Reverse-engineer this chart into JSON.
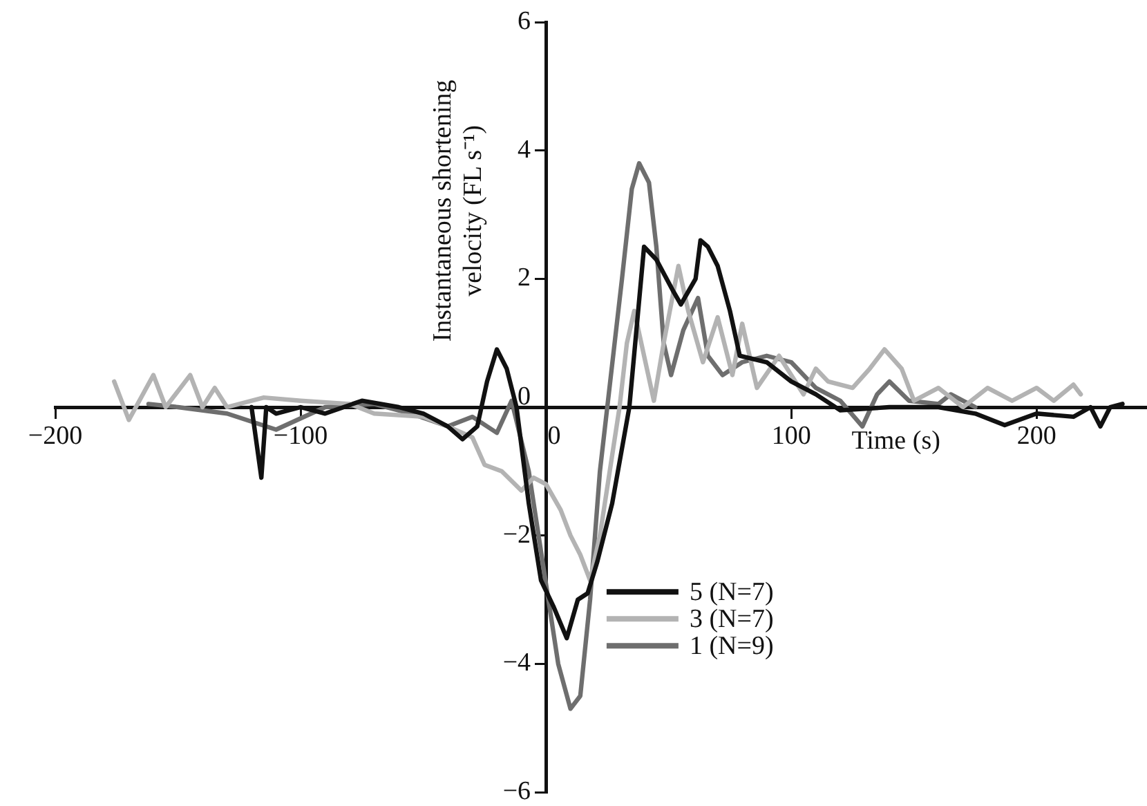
{
  "chart_data": {
    "type": "line",
    "xlabel": "Time (s)",
    "ylabel": "Instantaneous shortening velocity (FL s⁻¹)",
    "xlim": [
      -200,
      245
    ],
    "xticks": [
      -200,
      -100,
      0,
      100,
      200
    ],
    "ylim": [
      -6,
      6
    ],
    "yticks": [
      -6,
      -4,
      -2,
      0,
      2,
      4,
      6
    ],
    "grid": false,
    "legend": "bottom",
    "marker": "none",
    "line_style": "solid",
    "series": [
      {
        "name": "5 (N=7)",
        "color": "#111111",
        "x": [
          -120,
          -116,
          -114,
          -110,
          -100,
          -90,
          -75,
          -60,
          -50,
          -40,
          -34,
          -28,
          -24,
          -20,
          -16,
          -12,
          -7,
          -2,
          3,
          8.5,
          13,
          17,
          21,
          27,
          34,
          40,
          45,
          52,
          55,
          61,
          63,
          66,
          70,
          75,
          79,
          90,
          100,
          110,
          120,
          140,
          160,
          175,
          187,
          200,
          215,
          222,
          226,
          230,
          235
        ],
        "values": [
          0,
          -1.1,
          0,
          -0.1,
          0,
          -0.1,
          0.1,
          0,
          -0.1,
          -0.3,
          -0.5,
          -0.3,
          0.4,
          0.9,
          0.6,
          0,
          -1.5,
          -2.7,
          -3.1,
          -3.6,
          -3.0,
          -2.9,
          -2.4,
          -1.5,
          0,
          2.5,
          2.3,
          1.8,
          1.6,
          2.0,
          2.6,
          2.5,
          2.2,
          1.5,
          0.8,
          0.7,
          0.4,
          0.2,
          -0.05,
          0,
          0,
          -0.1,
          -0.28,
          -0.1,
          -0.15,
          0,
          -0.3,
          0,
          0.05
        ]
      },
      {
        "name": "3 (N=7)",
        "color": "#b3b3b3",
        "x": [
          -176,
          -170,
          -160,
          -155,
          -145,
          -140,
          -135,
          -130,
          -115,
          -100,
          -80,
          -70,
          -50,
          -40,
          -30,
          -25,
          -18,
          -10,
          -5,
          0,
          6,
          10,
          14,
          18,
          22,
          26,
          30,
          33,
          36,
          40,
          44,
          48,
          54,
          58,
          64,
          70,
          76,
          80,
          86,
          95,
          105,
          110,
          115,
          125,
          132,
          138,
          145,
          150,
          160,
          170,
          180,
          190,
          200,
          207,
          215,
          218
        ],
        "values": [
          0.4,
          -0.2,
          0.5,
          0,
          0.5,
          0,
          0.3,
          0,
          0.15,
          0.1,
          0.05,
          -0.1,
          -0.15,
          -0.3,
          -0.47,
          -0.9,
          -1.0,
          -1.3,
          -1.1,
          -1.2,
          -1.6,
          -2.0,
          -2.3,
          -2.7,
          -2.0,
          -1.0,
          0,
          1.0,
          1.5,
          0.8,
          0.1,
          1.0,
          2.2,
          1.5,
          0.7,
          1.4,
          0.5,
          1.3,
          0.3,
          0.8,
          0.2,
          0.6,
          0.4,
          0.3,
          0.6,
          0.9,
          0.6,
          0.1,
          0.3,
          0,
          0.3,
          0.1,
          0.3,
          0.1,
          0.35,
          0.2
        ]
      },
      {
        "name": "1 (N=9)",
        "color": "#6e6e6e",
        "x": [
          -162,
          -150,
          -130,
          -110,
          -90,
          -70,
          -55,
          -40,
          -30,
          -20,
          -14,
          -7,
          -3,
          1,
          5,
          10,
          14,
          18,
          22,
          25,
          31,
          35,
          38,
          42,
          45,
          48,
          51,
          56,
          62,
          66,
          72,
          80,
          90,
          100,
          110,
          120,
          129,
          135,
          140,
          148,
          160,
          165,
          175
        ],
        "values": [
          0.05,
          0,
          -0.1,
          -0.35,
          0,
          0.05,
          -0.1,
          -0.3,
          -0.15,
          -0.4,
          0.1,
          -1,
          -2,
          -3,
          -4,
          -4.7,
          -4.5,
          -3.0,
          -1,
          0,
          2,
          3.4,
          3.8,
          3.5,
          2.5,
          1.0,
          0.5,
          1.2,
          1.7,
          0.8,
          0.5,
          0.7,
          0.8,
          0.7,
          0.3,
          0.1,
          -0.3,
          0.2,
          0.4,
          0.1,
          0.05,
          0.2,
          0
        ]
      }
    ]
  }
}
